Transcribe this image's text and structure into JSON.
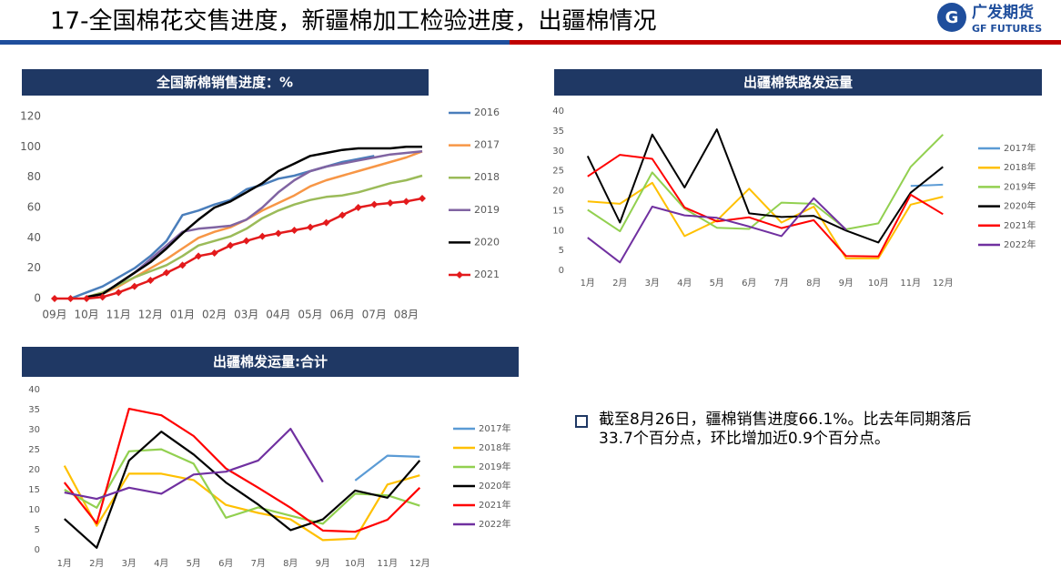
{
  "header": {
    "title": "17-全国棉花交售进度，新疆棉加工检验进度，出疆棉情况",
    "logo_cn": "广发期货",
    "logo_en": "GF FUTURES"
  },
  "chart_data": [
    {
      "type": "line",
      "title": "全国新棉销售进度：%",
      "categories": [
        "09月",
        null,
        "10月",
        null,
        "11月",
        null,
        "12月",
        null,
        "01月",
        null,
        "02月",
        null,
        "03月",
        null,
        "04月",
        null,
        "05月",
        null,
        "06月",
        null,
        "07月",
        null,
        "08月",
        null
      ],
      "ylim": [
        0,
        120
      ],
      "yticks": [
        0,
        20,
        40,
        60,
        80,
        100,
        120
      ],
      "grid": false,
      "series": [
        {
          "name": "2016",
          "color": "#4a7ebb",
          "values": [
            null,
            0,
            4,
            8,
            14,
            20,
            28,
            38,
            55,
            58,
            62,
            65,
            72,
            75,
            79,
            81,
            84,
            87,
            90,
            92,
            94,
            null,
            null,
            null
          ]
        },
        {
          "name": "2017",
          "color": "#f79646",
          "values": [
            null,
            null,
            1,
            3,
            8,
            14,
            20,
            26,
            33,
            40,
            44,
            47,
            52,
            58,
            63,
            68,
            74,
            78,
            81,
            84,
            87,
            90,
            93,
            97
          ]
        },
        {
          "name": "2018",
          "color": "#9bbb59",
          "values": [
            null,
            null,
            1,
            4,
            9,
            14,
            18,
            22,
            28,
            35,
            38,
            41,
            46,
            53,
            58,
            62,
            65,
            67,
            68,
            70,
            73,
            76,
            78,
            81
          ]
        },
        {
          "name": "2019",
          "color": "#8064a2",
          "values": [
            null,
            null,
            1,
            3,
            10,
            17,
            26,
            35,
            44,
            46,
            47,
            48,
            52,
            60,
            70,
            78,
            84,
            87,
            89,
            91,
            93,
            95,
            96,
            97
          ]
        },
        {
          "name": "2020",
          "color": "#000000",
          "values": [
            null,
            null,
            1,
            3,
            10,
            17,
            24,
            33,
            43,
            52,
            60,
            64,
            70,
            76,
            84,
            89,
            94,
            96,
            98,
            99,
            99,
            99,
            100,
            100
          ]
        },
        {
          "name": "2021",
          "color": "#e31a1c",
          "marker": "diamond",
          "values": [
            0,
            0,
            0,
            1,
            4,
            8,
            12,
            17,
            22,
            28,
            30,
            35,
            38,
            41,
            43,
            45,
            47,
            50,
            55,
            60,
            62,
            63,
            64,
            66
          ]
        }
      ]
    },
    {
      "type": "line",
      "title": "出疆棉铁路发运量",
      "categories": [
        "1月",
        "2月",
        "3月",
        "4月",
        "5月",
        "6月",
        "7月",
        "8月",
        "9月",
        "10月",
        "11月",
        "12月"
      ],
      "ylim": [
        0,
        40
      ],
      "yticks": [
        0,
        5,
        10,
        15,
        20,
        25,
        30,
        35,
        40
      ],
      "grid": false,
      "series": [
        {
          "name": "2017年",
          "color": "#5b9bd5",
          "values": [
            null,
            null,
            null,
            null,
            null,
            null,
            null,
            null,
            null,
            null,
            21.2,
            21.5
          ]
        },
        {
          "name": "2018年",
          "color": "#ffc000",
          "values": [
            17.3,
            16.7,
            22,
            8.6,
            12.5,
            20.5,
            12,
            16,
            3,
            3,
            16.5,
            18.5
          ]
        },
        {
          "name": "2019年",
          "color": "#92d050",
          "values": [
            15.2,
            9.8,
            24.6,
            15.5,
            10.7,
            10.4,
            17,
            16.7,
            10.3,
            11.8,
            26,
            34.1
          ]
        },
        {
          "name": "2020年",
          "color": "#000000",
          "values": [
            28.7,
            12,
            34.1,
            20.8,
            35.4,
            14.3,
            13.4,
            13.7,
            10,
            7,
            19.5,
            26
          ]
        },
        {
          "name": "2021年",
          "color": "#ff0000",
          "values": [
            23.6,
            29,
            28,
            15.8,
            12.3,
            13.3,
            10.6,
            12.6,
            3.6,
            3.5,
            19,
            14.1
          ]
        },
        {
          "name": "2022年",
          "color": "#7030a0",
          "values": [
            8.2,
            2,
            16,
            13.8,
            13.2,
            11,
            8.6,
            18.1,
            10.2,
            null,
            null,
            null
          ]
        }
      ]
    },
    {
      "type": "line",
      "title": "出疆棉发运量:合计",
      "categories": [
        "1月",
        "2月",
        "3月",
        "4月",
        "5月",
        "6月",
        "7月",
        "8月",
        "9月",
        "10月",
        "11月",
        "12月"
      ],
      "ylim": [
        0,
        40
      ],
      "yticks": [
        0,
        5,
        10,
        15,
        20,
        25,
        30,
        35,
        40
      ],
      "grid": false,
      "series": [
        {
          "name": "2017年",
          "color": "#5b9bd5",
          "values": [
            null,
            null,
            null,
            null,
            null,
            null,
            null,
            null,
            null,
            17.3,
            23.5,
            23.2
          ]
        },
        {
          "name": "2018年",
          "color": "#ffc000",
          "values": [
            21,
            6,
            19,
            19,
            17.4,
            11.2,
            9.2,
            7.6,
            2.4,
            2.8,
            16.3,
            18.6
          ]
        },
        {
          "name": "2019年",
          "color": "#92d050",
          "values": [
            15,
            10.5,
            24.6,
            25.1,
            21.5,
            8,
            10.6,
            8.5,
            6.5,
            14,
            13.6,
            11
          ]
        },
        {
          "name": "2020年",
          "color": "#000000",
          "values": [
            7.7,
            0.5,
            22.3,
            29.5,
            23.8,
            16.8,
            11.3,
            4.9,
            7.6,
            14.8,
            13,
            22.3
          ]
        },
        {
          "name": "2021年",
          "color": "#ff0000",
          "values": [
            16.8,
            6.6,
            35.2,
            33.6,
            28.4,
            20.3,
            15.5,
            10.5,
            4.8,
            4.5,
            7.5,
            15.5
          ]
        },
        {
          "name": "2022年",
          "color": "#7030a0",
          "values": [
            14.3,
            12.7,
            15.5,
            14,
            18.8,
            19.5,
            22.3,
            30.2,
            16.9,
            null,
            null,
            null
          ]
        }
      ]
    }
  ],
  "note": "截至8月26日，疆棉销售进度66.1%。比去年同期落后33.7个百分点，环比增加近0.9个百分点。"
}
